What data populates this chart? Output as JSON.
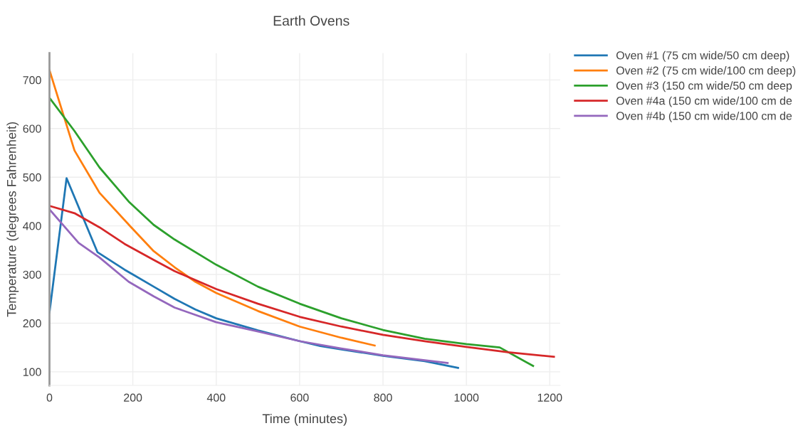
{
  "chart_data": {
    "type": "line",
    "title": "Earth Ovens",
    "xlabel": "Time (minutes)",
    "ylabel": "Temperature (degrees Fahrenheit)",
    "xlim": [
      0,
      1225
    ],
    "ylim": [
      72,
      755
    ],
    "xticks": [
      0,
      200,
      400,
      600,
      800,
      1000,
      1200
    ],
    "yticks": [
      100,
      200,
      300,
      400,
      500,
      600,
      700
    ],
    "grid": true,
    "legend": "top right",
    "marker": "none",
    "line_style": "solid",
    "series": [
      {
        "name": "Oven #1 (75 cm wide/50 cm deep)",
        "color": "#1f77b4",
        "x": [
          0,
          41,
          115,
          180,
          200,
          250,
          300,
          350,
          400,
          500,
          600,
          650,
          700,
          800,
          900,
          980
        ],
        "values": [
          222,
          498,
          346,
          310,
          300,
          275,
          250,
          228,
          210,
          185,
          163,
          153,
          146,
          133,
          122,
          108
        ]
      },
      {
        "name": "Oven #2 (75 cm wide/100 cm deep)",
        "color": "#ff7f0e",
        "x": [
          0,
          60,
          120,
          195,
          250,
          300,
          350,
          400,
          500,
          600,
          700,
          780
        ],
        "values": [
          720,
          555,
          468,
          398,
          348,
          315,
          285,
          262,
          225,
          193,
          170,
          154
        ]
      },
      {
        "name": "Oven #3 (150 cm wide/50 cm deep",
        "color": "#2ca02c",
        "x": [
          0,
          60,
          120,
          190,
          250,
          300,
          400,
          500,
          600,
          700,
          800,
          900,
          1000,
          1080,
          1160
        ],
        "values": [
          663,
          595,
          520,
          450,
          402,
          372,
          320,
          275,
          240,
          210,
          186,
          168,
          157,
          150,
          112
        ]
      },
      {
        "name": "Oven #4a (150 cm wide/100 cm de",
        "color": "#d62728",
        "x": [
          0,
          60,
          120,
          180,
          250,
          300,
          400,
          500,
          600,
          700,
          800,
          900,
          1000,
          1100,
          1210
        ],
        "values": [
          441,
          426,
          397,
          363,
          330,
          307,
          270,
          240,
          213,
          193,
          176,
          163,
          151,
          140,
          131
        ]
      },
      {
        "name": "Oven #4b (150 cm wide/100 cm de",
        "color": "#9467bd",
        "x": [
          0,
          70,
          120,
          190,
          250,
          300,
          400,
          500,
          600,
          700,
          800,
          955
        ],
        "values": [
          434,
          365,
          335,
          285,
          255,
          232,
          202,
          183,
          163,
          148,
          134,
          118
        ]
      }
    ]
  }
}
